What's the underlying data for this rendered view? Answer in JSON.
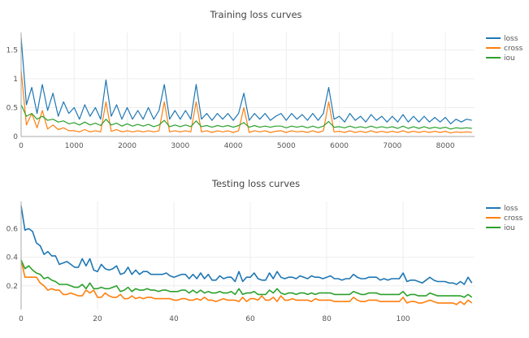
{
  "colors": {
    "loss": "#1f77b4",
    "cross": "#ff7f0e",
    "iou": "#2ca02c"
  },
  "chart_data": [
    {
      "type": "line",
      "title": "Training loss curves",
      "xlabel": "",
      "ylabel": "",
      "xlim": [
        0,
        8550
      ],
      "ylim": [
        0,
        1.8
      ],
      "grid": true,
      "legend": "top-right",
      "xticks": [
        0,
        1000,
        2000,
        3000,
        4000,
        5000,
        6000,
        7000,
        8000
      ],
      "xtick_labels": [
        "0",
        "1000",
        "2000",
        "3000",
        "4000",
        "5000",
        "6000",
        "7000",
        "8000"
      ],
      "yticks": [
        0,
        0.5,
        1,
        1.5
      ],
      "ytick_labels": [
        "0",
        "0.5",
        "1",
        "1.5"
      ],
      "x_step": 100,
      "series": [
        {
          "name": "loss",
          "values": [
            1.72,
            0.55,
            0.85,
            0.4,
            0.9,
            0.45,
            0.75,
            0.35,
            0.6,
            0.4,
            0.5,
            0.3,
            0.55,
            0.35,
            0.5,
            0.3,
            0.98,
            0.35,
            0.55,
            0.3,
            0.5,
            0.3,
            0.45,
            0.3,
            0.5,
            0.3,
            0.45,
            0.9,
            0.3,
            0.45,
            0.3,
            0.45,
            0.3,
            0.9,
            0.3,
            0.4,
            0.28,
            0.4,
            0.3,
            0.4,
            0.28,
            0.4,
            0.75,
            0.28,
            0.4,
            0.3,
            0.4,
            0.28,
            0.35,
            0.4,
            0.28,
            0.4,
            0.3,
            0.38,
            0.28,
            0.4,
            0.28,
            0.4,
            0.85,
            0.3,
            0.35,
            0.25,
            0.4,
            0.28,
            0.35,
            0.25,
            0.38,
            0.28,
            0.35,
            0.25,
            0.35,
            0.25,
            0.38,
            0.25,
            0.35,
            0.25,
            0.35,
            0.25,
            0.33,
            0.25,
            0.33,
            0.22,
            0.3,
            0.25,
            0.3,
            0.28
          ]
        },
        {
          "name": "cross",
          "values": [
            1.15,
            0.2,
            0.4,
            0.15,
            0.45,
            0.13,
            0.2,
            0.12,
            0.15,
            0.1,
            0.1,
            0.08,
            0.12,
            0.08,
            0.1,
            0.08,
            0.6,
            0.09,
            0.12,
            0.08,
            0.1,
            0.08,
            0.1,
            0.08,
            0.1,
            0.08,
            0.1,
            0.6,
            0.08,
            0.1,
            0.08,
            0.1,
            0.08,
            0.6,
            0.08,
            0.1,
            0.07,
            0.1,
            0.08,
            0.1,
            0.07,
            0.1,
            0.5,
            0.07,
            0.1,
            0.08,
            0.1,
            0.07,
            0.09,
            0.1,
            0.07,
            0.1,
            0.08,
            0.09,
            0.07,
            0.1,
            0.07,
            0.1,
            0.6,
            0.08,
            0.09,
            0.07,
            0.1,
            0.07,
            0.09,
            0.07,
            0.1,
            0.07,
            0.09,
            0.07,
            0.09,
            0.07,
            0.1,
            0.07,
            0.09,
            0.07,
            0.09,
            0.07,
            0.09,
            0.07,
            0.09,
            0.06,
            0.08,
            0.07,
            0.08,
            0.07
          ]
        },
        {
          "name": "iou",
          "values": [
            0.55,
            0.35,
            0.4,
            0.3,
            0.35,
            0.28,
            0.3,
            0.25,
            0.27,
            0.22,
            0.24,
            0.2,
            0.25,
            0.2,
            0.23,
            0.19,
            0.3,
            0.2,
            0.23,
            0.18,
            0.22,
            0.18,
            0.21,
            0.18,
            0.21,
            0.17,
            0.2,
            0.28,
            0.17,
            0.2,
            0.17,
            0.2,
            0.17,
            0.27,
            0.17,
            0.19,
            0.16,
            0.19,
            0.17,
            0.19,
            0.16,
            0.19,
            0.24,
            0.16,
            0.19,
            0.16,
            0.18,
            0.16,
            0.18,
            0.18,
            0.15,
            0.18,
            0.16,
            0.18,
            0.15,
            0.18,
            0.15,
            0.18,
            0.26,
            0.16,
            0.17,
            0.15,
            0.18,
            0.15,
            0.17,
            0.15,
            0.18,
            0.15,
            0.17,
            0.15,
            0.17,
            0.14,
            0.18,
            0.14,
            0.17,
            0.14,
            0.17,
            0.14,
            0.16,
            0.14,
            0.16,
            0.13,
            0.15,
            0.14,
            0.15,
            0.14
          ]
        }
      ]
    },
    {
      "type": "line",
      "title": "Testing loss curves",
      "xlabel": "",
      "ylabel": "",
      "xlim": [
        0,
        118.7
      ],
      "ylim": [
        0.034,
        0.79
      ],
      "grid": true,
      "legend": "top-right",
      "xticks": [
        0,
        20,
        40,
        60,
        80,
        100
      ],
      "xtick_labels": [
        "0",
        "20",
        "40",
        "60",
        "80",
        "100"
      ],
      "yticks": [
        0.2,
        0.4,
        0.6
      ],
      "ytick_labels": [
        "0.2",
        "0.4",
        "0.6"
      ],
      "x_step": 1,
      "series": [
        {
          "name": "loss",
          "values": [
            0.76,
            0.59,
            0.6,
            0.58,
            0.5,
            0.48,
            0.42,
            0.44,
            0.41,
            0.41,
            0.35,
            0.36,
            0.37,
            0.35,
            0.33,
            0.33,
            0.39,
            0.34,
            0.39,
            0.31,
            0.3,
            0.35,
            0.32,
            0.31,
            0.32,
            0.34,
            0.28,
            0.29,
            0.33,
            0.28,
            0.31,
            0.28,
            0.3,
            0.3,
            0.28,
            0.28,
            0.28,
            0.28,
            0.29,
            0.27,
            0.26,
            0.27,
            0.28,
            0.28,
            0.25,
            0.28,
            0.25,
            0.29,
            0.25,
            0.28,
            0.24,
            0.24,
            0.27,
            0.25,
            0.26,
            0.26,
            0.23,
            0.3,
            0.23,
            0.26,
            0.26,
            0.29,
            0.25,
            0.24,
            0.24,
            0.29,
            0.25,
            0.3,
            0.26,
            0.25,
            0.26,
            0.26,
            0.25,
            0.27,
            0.26,
            0.25,
            0.27,
            0.26,
            0.26,
            0.25,
            0.26,
            0.27,
            0.25,
            0.25,
            0.24,
            0.25,
            0.25,
            0.28,
            0.26,
            0.25,
            0.25,
            0.26,
            0.26,
            0.26,
            0.24,
            0.25,
            0.24,
            0.25,
            0.25,
            0.25,
            0.29,
            0.23,
            0.24,
            0.24,
            0.23,
            0.22,
            0.24,
            0.26,
            0.24,
            0.23,
            0.23,
            0.23,
            0.22,
            0.22,
            0.21,
            0.23,
            0.21,
            0.26,
            0.22
          ]
        },
        {
          "name": "cross",
          "values": [
            0.38,
            0.26,
            0.26,
            0.26,
            0.26,
            0.22,
            0.2,
            0.17,
            0.18,
            0.17,
            0.17,
            0.14,
            0.14,
            0.15,
            0.14,
            0.13,
            0.13,
            0.17,
            0.15,
            0.17,
            0.12,
            0.12,
            0.15,
            0.13,
            0.12,
            0.12,
            0.14,
            0.11,
            0.11,
            0.13,
            0.11,
            0.12,
            0.11,
            0.12,
            0.12,
            0.11,
            0.11,
            0.11,
            0.11,
            0.11,
            0.1,
            0.1,
            0.11,
            0.11,
            0.1,
            0.1,
            0.11,
            0.1,
            0.12,
            0.1,
            0.1,
            0.09,
            0.1,
            0.11,
            0.1,
            0.1,
            0.1,
            0.09,
            0.12,
            0.09,
            0.11,
            0.11,
            0.1,
            0.13,
            0.1,
            0.1,
            0.12,
            0.09,
            0.13,
            0.1,
            0.1,
            0.11,
            0.1,
            0.1,
            0.1,
            0.1,
            0.09,
            0.11,
            0.1,
            0.1,
            0.1,
            0.1,
            0.09,
            0.09,
            0.09,
            0.09,
            0.09,
            0.12,
            0.1,
            0.09,
            0.09,
            0.1,
            0.1,
            0.1,
            0.09,
            0.09,
            0.09,
            0.09,
            0.09,
            0.09,
            0.12,
            0.08,
            0.09,
            0.09,
            0.08,
            0.08,
            0.09,
            0.1,
            0.09,
            0.08,
            0.08,
            0.08,
            0.08,
            0.08,
            0.07,
            0.09,
            0.07,
            0.1,
            0.08
          ]
        },
        {
          "name": "iou",
          "values": [
            0.38,
            0.32,
            0.34,
            0.31,
            0.29,
            0.28,
            0.25,
            0.26,
            0.24,
            0.23,
            0.21,
            0.21,
            0.21,
            0.2,
            0.19,
            0.19,
            0.21,
            0.18,
            0.22,
            0.18,
            0.18,
            0.19,
            0.18,
            0.18,
            0.19,
            0.2,
            0.16,
            0.17,
            0.19,
            0.16,
            0.18,
            0.17,
            0.17,
            0.18,
            0.17,
            0.17,
            0.16,
            0.17,
            0.17,
            0.16,
            0.16,
            0.16,
            0.17,
            0.17,
            0.15,
            0.17,
            0.15,
            0.17,
            0.15,
            0.16,
            0.15,
            0.15,
            0.16,
            0.15,
            0.15,
            0.16,
            0.14,
            0.18,
            0.14,
            0.15,
            0.15,
            0.16,
            0.14,
            0.14,
            0.14,
            0.17,
            0.15,
            0.18,
            0.15,
            0.14,
            0.15,
            0.15,
            0.14,
            0.15,
            0.15,
            0.14,
            0.15,
            0.14,
            0.15,
            0.15,
            0.15,
            0.15,
            0.14,
            0.14,
            0.14,
            0.14,
            0.14,
            0.16,
            0.15,
            0.14,
            0.14,
            0.15,
            0.15,
            0.15,
            0.14,
            0.14,
            0.14,
            0.14,
            0.14,
            0.14,
            0.16,
            0.13,
            0.14,
            0.14,
            0.13,
            0.13,
            0.13,
            0.15,
            0.14,
            0.13,
            0.13,
            0.13,
            0.13,
            0.13,
            0.13,
            0.13,
            0.12,
            0.14,
            0.12
          ]
        }
      ]
    }
  ]
}
